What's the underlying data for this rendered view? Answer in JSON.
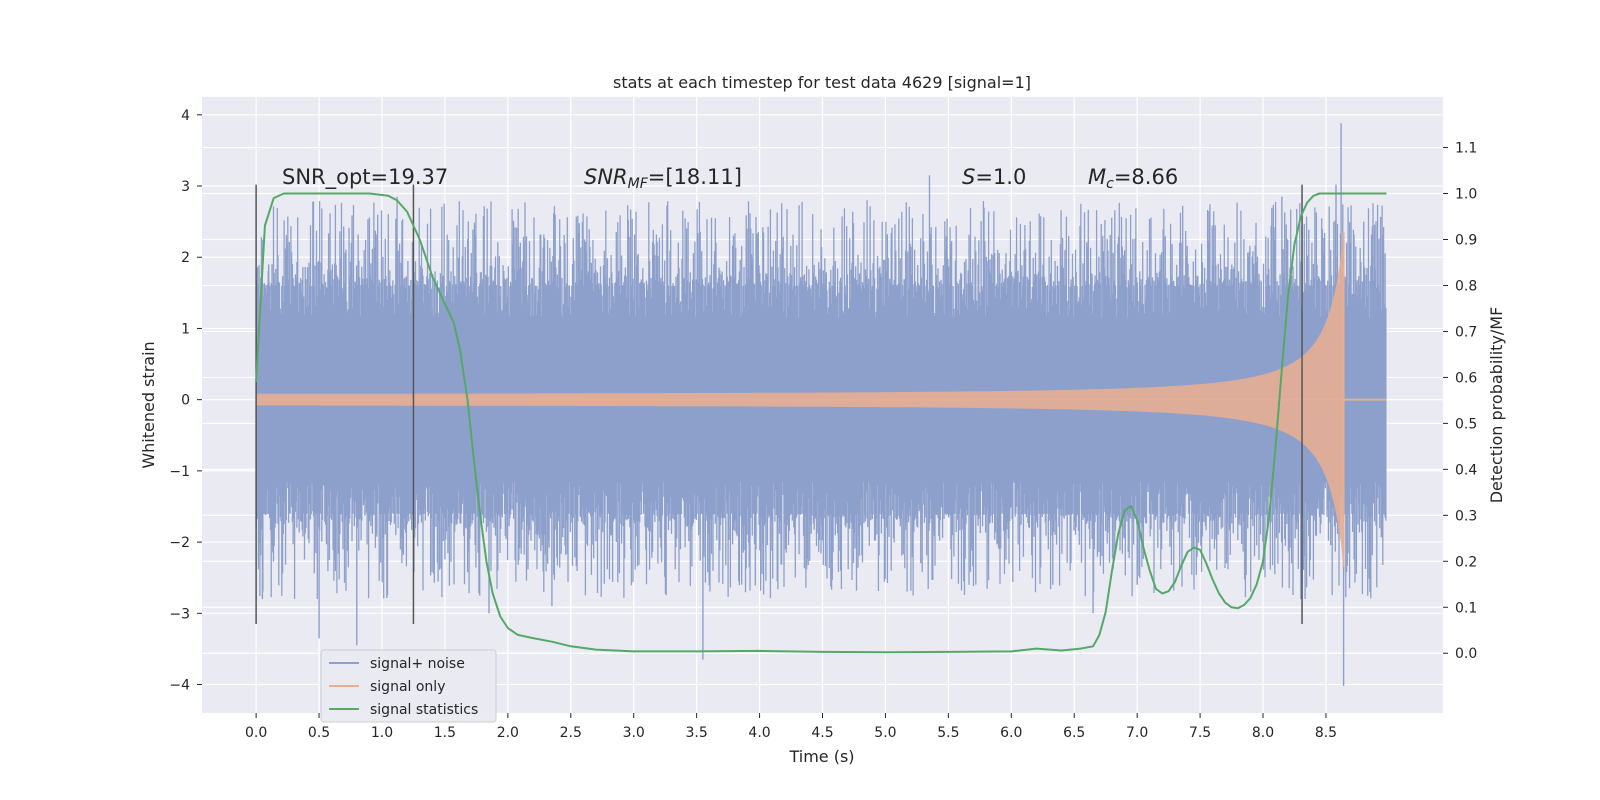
{
  "chart_data": {
    "type": "line",
    "title": "stats at each timestep for test data 4629 [signal=1]",
    "xlabel": "Time (s)",
    "ylabel": "Whitened strain",
    "ylabel_right": "Detection probability/MF",
    "xlim": [
      -0.43,
      9.43
    ],
    "ylim": [
      -4.4,
      4.25
    ],
    "ylim_right": [
      -0.13,
      1.21
    ],
    "x_ticks": [
      0.0,
      0.5,
      1.0,
      1.5,
      2.0,
      2.5,
      3.0,
      3.5,
      4.0,
      4.5,
      5.0,
      5.5,
      6.0,
      6.5,
      7.0,
      7.5,
      8.0,
      8.5
    ],
    "x_tick_labels": [
      "0.0",
      "0.5",
      "1.0",
      "1.5",
      "2.0",
      "2.5",
      "3.0",
      "3.5",
      "4.0",
      "4.5",
      "5.0",
      "5.5",
      "6.0",
      "6.5",
      "7.0",
      "7.5",
      "8.0",
      "8.5"
    ],
    "y_ticks": [
      4,
      3,
      2,
      1,
      0,
      -1,
      -2,
      -3,
      -4
    ],
    "y_tick_labels": [
      "4",
      "3",
      "2",
      "1",
      "0",
      "−1",
      "−2",
      "−3",
      "−4"
    ],
    "y_right_ticks": [
      1.1,
      1.0,
      0.9,
      0.8,
      0.7,
      0.6,
      0.5,
      0.4,
      0.3,
      0.2,
      0.1,
      0.0
    ],
    "y_right_tick_labels": [
      "1.1",
      "1.0",
      "0.9",
      "0.8",
      "0.7",
      "0.6",
      "0.5",
      "0.4",
      "0.3",
      "0.2",
      "0.1",
      "0.0"
    ],
    "grid": true,
    "annotations": [
      {
        "label": "SNR_opt",
        "value": "=19.37"
      },
      {
        "label": "SNR",
        "sub": "MF",
        "value": "=[18.11]"
      },
      {
        "label": "S",
        "value": "=1.0"
      },
      {
        "label": "M",
        "sub": "c",
        "value": "=8.66"
      }
    ],
    "vertical_markers_s": [
      0.0,
      1.25,
      8.31
    ],
    "vertical_marker_range": [
      -3.15,
      3.02
    ],
    "legend": {
      "position": "lower-left",
      "entries": [
        {
          "label": "signal+ noise",
          "color": "#8da0cb"
        },
        {
          "label": "signal only",
          "color": "#e5ae95"
        },
        {
          "label": "signal statistics",
          "color": "#55a868"
        }
      ]
    },
    "series": [
      {
        "name": "signal+ noise",
        "color": "#8da0cb",
        "t_range": [
          0.0,
          8.98
        ],
        "core_amplitude": 1.15,
        "peak_amplitude_range": [
          1.6,
          2.8
        ],
        "max_value": 3.88,
        "min_value": -4.02,
        "spikes": [
          [
            0.05,
            -2.8
          ],
          [
            0.1,
            1.9
          ],
          [
            0.5,
            -3.35
          ],
          [
            0.8,
            -3.45
          ],
          [
            1.12,
            2.85
          ],
          [
            1.85,
            -3.0
          ],
          [
            2.35,
            -2.9
          ],
          [
            3.55,
            -3.65
          ],
          [
            3.9,
            2.4
          ],
          [
            5.35,
            3.15
          ],
          [
            6.65,
            -3.0
          ],
          [
            7.0,
            -2.6
          ],
          [
            8.15,
            2.85
          ],
          [
            8.3,
            -2.8
          ],
          [
            8.58,
            3.02
          ],
          [
            8.62,
            3.88
          ],
          [
            8.64,
            -4.02
          ],
          [
            8.8,
            2.5
          ],
          [
            8.85,
            -2.7
          ]
        ]
      },
      {
        "name": "signal only",
        "color": "#e5ae95",
        "chirp": {
          "start_s": 0.0,
          "end_s": 8.64,
          "end_amplitude": 2.35,
          "ringdown_s": 0.03
        }
      },
      {
        "name": "signal statistics",
        "color": "#55a868",
        "axis": "right",
        "x": [
          0.0,
          0.07,
          0.14,
          0.22,
          0.35,
          0.5,
          0.7,
          0.9,
          1.05,
          1.12,
          1.2,
          1.3,
          1.4,
          1.5,
          1.57,
          1.62,
          1.68,
          1.73,
          1.78,
          1.83,
          1.88,
          1.94,
          2.0,
          2.08,
          2.2,
          2.35,
          2.5,
          2.7,
          3.0,
          3.5,
          4.0,
          4.5,
          5.0,
          5.5,
          6.0,
          6.2,
          6.4,
          6.55,
          6.65,
          6.7,
          6.75,
          6.8,
          6.85,
          6.9,
          6.95,
          7.0,
          7.05,
          7.1,
          7.15,
          7.2,
          7.25,
          7.3,
          7.35,
          7.4,
          7.45,
          7.5,
          7.55,
          7.6,
          7.65,
          7.7,
          7.75,
          7.8,
          7.85,
          7.9,
          7.95,
          8.0,
          8.05,
          8.1,
          8.15,
          8.2,
          8.25,
          8.3,
          8.35,
          8.4,
          8.45,
          8.5,
          8.55,
          8.6,
          8.65,
          8.75,
          8.85,
          8.98
        ],
        "y": [
          0.59,
          0.93,
          0.99,
          1.0,
          1.0,
          1.0,
          1.0,
          1.0,
          0.995,
          0.985,
          0.96,
          0.9,
          0.82,
          0.76,
          0.72,
          0.66,
          0.55,
          0.42,
          0.3,
          0.2,
          0.13,
          0.08,
          0.055,
          0.04,
          0.033,
          0.025,
          0.015,
          0.008,
          0.004,
          0.004,
          0.005,
          0.003,
          0.002,
          0.003,
          0.004,
          0.01,
          0.006,
          0.01,
          0.015,
          0.04,
          0.09,
          0.18,
          0.26,
          0.31,
          0.32,
          0.29,
          0.23,
          0.18,
          0.14,
          0.13,
          0.135,
          0.155,
          0.19,
          0.22,
          0.23,
          0.225,
          0.195,
          0.16,
          0.13,
          0.11,
          0.1,
          0.098,
          0.105,
          0.12,
          0.15,
          0.2,
          0.3,
          0.45,
          0.62,
          0.78,
          0.89,
          0.95,
          0.98,
          0.995,
          1.0,
          1.0,
          1.0,
          1.0,
          1.0,
          1.0,
          1.0,
          1.0
        ]
      }
    ]
  }
}
